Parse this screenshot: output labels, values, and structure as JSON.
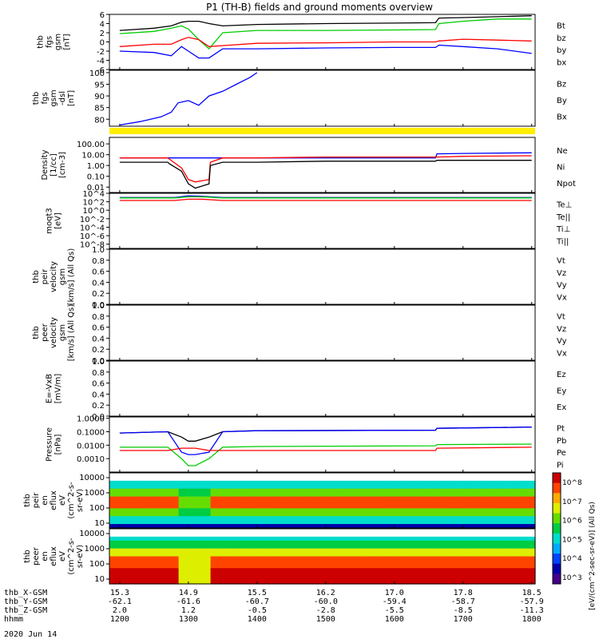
{
  "title": "P1 (TH-B) fields and ground moments overview",
  "date_label": "2020 Jun 14",
  "x_axis_rows": [
    {
      "label": "thb_X-GSM",
      "values": [
        "15.3",
        "14.9",
        "15.5",
        "16.2",
        "17.0",
        "17.8",
        "18.5"
      ]
    },
    {
      "label": "thb_Y-GSM",
      "values": [
        "-62.1",
        "-61.6",
        "-60.7",
        "-60.0",
        "-59.4",
        "-58.7",
        "-57.9"
      ]
    },
    {
      "label": "thb_Z-GSM",
      "values": [
        "2.0",
        "1.2",
        "-0.5",
        "-2.8",
        "-5.5",
        "-8.5",
        "-11.3"
      ]
    },
    {
      "label": "hhmm",
      "values": [
        "1200",
        "1300",
        "1400",
        "1500",
        "1600",
        "1700",
        "1800"
      ]
    }
  ],
  "colors": {
    "black": "#000000",
    "red": "#ff0000",
    "green": "#00cc00",
    "blue": "#0000ff",
    "yellow": "#ffee00"
  },
  "colorbar": {
    "title": "[eV/(cm^2-sec-sr-eV)] (All Qs)",
    "tick_labels": [
      "10^8",
      "10^7",
      "10^6",
      "10^5",
      "10^4",
      "10^3"
    ]
  },
  "chart_data": [
    {
      "id": "fgs",
      "type": "line",
      "ylabel_lines": [
        "thb",
        "fgs",
        "gsm",
        "[nT]"
      ],
      "ylim": [
        -6,
        6
      ],
      "yticks": [
        "-6",
        "-4",
        "-2",
        "0",
        "2",
        "4",
        "6"
      ],
      "x": [
        12.0,
        12.5,
        12.75,
        12.9,
        13.0,
        13.15,
        13.3,
        13.5,
        14.0,
        15.0,
        16.0,
        16.6,
        16.65,
        17.0,
        17.5,
        18.0
      ],
      "legend": [
        {
          "name": "Bt",
          "color": "#000000"
        },
        {
          "name": "bz",
          "color": "#ff0000"
        },
        {
          "name": "by",
          "color": "#00cc00"
        },
        {
          "name": "bx",
          "color": "#0000ff"
        }
      ],
      "series": [
        {
          "key": "Bt",
          "color": "#000000",
          "values": [
            2.5,
            3.0,
            3.5,
            4.3,
            4.5,
            4.5,
            4.0,
            3.5,
            3.8,
            4.0,
            4.1,
            4.2,
            5.2,
            5.3,
            5.5,
            5.7
          ]
        },
        {
          "key": "by",
          "color": "#00cc00",
          "values": [
            1.8,
            2.3,
            3.0,
            3.5,
            2.8,
            0.5,
            -1.5,
            2.0,
            2.5,
            2.5,
            2.6,
            2.7,
            4.0,
            4.5,
            5.0,
            5.0
          ]
        },
        {
          "key": "bz",
          "color": "#ff0000",
          "values": [
            -1.0,
            -0.5,
            -0.5,
            0.5,
            1.0,
            0.5,
            -1.0,
            -0.8,
            -0.3,
            -0.2,
            0.0,
            0.0,
            0.2,
            0.6,
            0.4,
            0.2
          ]
        },
        {
          "key": "bx",
          "color": "#0000ff",
          "values": [
            -2.0,
            -2.3,
            -3.0,
            -1.0,
            -2.0,
            -3.5,
            -3.5,
            -1.5,
            -1.5,
            -1.3,
            -1.2,
            -1.2,
            -0.7,
            -1.0,
            -1.5,
            -2.5
          ]
        }
      ]
    },
    {
      "id": "fgs_dsl",
      "type": "line",
      "ylabel_lines": [
        "thb",
        "fgs",
        "gsm",
        "-dsl",
        "[nT]"
      ],
      "ylim": [
        77,
        101
      ],
      "yticks": [
        "80",
        "85",
        "90",
        "95",
        "100"
      ],
      "x": [
        12.0,
        12.3,
        12.6,
        12.75,
        12.85,
        13.0,
        13.15,
        13.3,
        13.5,
        13.7,
        13.9,
        14.0
      ],
      "legend": [
        {
          "name": "Bz",
          "color": "#ff0000"
        },
        {
          "name": "By",
          "color": "#00cc00"
        },
        {
          "name": "Bx",
          "color": "#0000ff"
        }
      ],
      "series": [
        {
          "key": "Bx",
          "color": "#0000ff",
          "values": [
            77.5,
            79,
            81,
            83,
            87,
            88,
            86,
            90,
            92,
            95,
            98,
            100
          ]
        }
      ]
    },
    {
      "id": "density",
      "type": "line",
      "log": true,
      "ylabel_lines": [
        "Density",
        "[1/cc]",
        "[cm-3]"
      ],
      "ylim_log": [
        -2.5,
        2.6
      ],
      "yticks": [
        "0.01",
        "0.10",
        "1.00",
        "10.00",
        "100.00"
      ],
      "x": [
        12.0,
        12.7,
        12.72,
        12.9,
        13.0,
        13.1,
        13.3,
        13.32,
        13.5,
        14.0,
        15.0,
        16.6,
        16.62,
        17.0,
        18.0
      ],
      "legend": [
        {
          "name": "Ne",
          "color": "#ff0000"
        },
        {
          "name": "Ni",
          "color": "#000000"
        },
        {
          "name": "Npot",
          "color": "#0000ff"
        }
      ],
      "series": [
        {
          "key": "Npot",
          "color": "#0000ff",
          "values": [
            5,
            5,
            5,
            5,
            5,
            5,
            5,
            5,
            5,
            5,
            5,
            5,
            12,
            13,
            15
          ]
        },
        {
          "key": "Ne",
          "color": "#ff0000",
          "values": [
            5,
            5,
            4,
            0.6,
            0.05,
            0.03,
            0.05,
            2,
            5,
            5,
            6,
            6,
            6,
            7,
            8
          ]
        },
        {
          "key": "Ni",
          "color": "#000000",
          "values": [
            2,
            2,
            1.5,
            0.3,
            0.02,
            0.008,
            0.02,
            1,
            2,
            2,
            2.5,
            2.5,
            3,
            3,
            3
          ]
        }
      ]
    },
    {
      "id": "temp",
      "type": "line",
      "log": true,
      "ylabel_lines": [
        "moqt3",
        "[eV]"
      ],
      "ylim_log": [
        -9,
        4
      ],
      "yticks": [
        "10^-8",
        "10^-6",
        "10^-4",
        "10^-2",
        "10^0",
        "10^2",
        "10^4"
      ],
      "x": [
        12.0,
        12.8,
        13.0,
        13.2,
        13.5,
        18.0
      ],
      "legend": [
        {
          "name": "Te⊥",
          "color": "#ff0000"
        },
        {
          "name": "Te||",
          "color": "#000000"
        },
        {
          "name": "Ti⊥",
          "color": "#0000ff"
        },
        {
          "name": "Ti||",
          "color": "#00cc00"
        }
      ],
      "series": [
        {
          "key": "Ti",
          "color": "#0000ff",
          "values": [
            1000,
            1000,
            2500,
            2000,
            1000,
            1000
          ]
        },
        {
          "key": "Ti2",
          "color": "#00cc00",
          "values": [
            800,
            800,
            1500,
            1500,
            800,
            800
          ]
        },
        {
          "key": "Te",
          "color": "#ff0000",
          "values": [
            200,
            200,
            400,
            400,
            200,
            200
          ]
        }
      ]
    },
    {
      "id": "ivel",
      "type": "line",
      "ylabel_lines": [
        "thb",
        "peir",
        "velocity",
        "gsm",
        "[km/s] (All Qs)"
      ],
      "ylim": [
        0,
        1
      ],
      "yticks": [
        "0.0",
        "0.2",
        "0.4",
        "0.6",
        "0.8",
        "1.0"
      ],
      "legend": [
        {
          "name": "Vt",
          "color": "#000000"
        },
        {
          "name": "Vz",
          "color": "#ff0000"
        },
        {
          "name": "Vy",
          "color": "#00cc00"
        },
        {
          "name": "Vx",
          "color": "#0000ff"
        }
      ],
      "series": []
    },
    {
      "id": "evel",
      "type": "line",
      "ylabel_lines": [
        "thb",
        "peer",
        "velocity",
        "gsm",
        "[km/s] (All Qs)"
      ],
      "ylim": [
        0,
        1
      ],
      "yticks": [
        "0.0",
        "0.2",
        "0.4",
        "0.6",
        "0.8",
        "1.0"
      ],
      "legend": [
        {
          "name": "Vt",
          "color": "#000000"
        },
        {
          "name": "Vz",
          "color": "#ff0000"
        },
        {
          "name": "Vy",
          "color": "#00cc00"
        },
        {
          "name": "Vx",
          "color": "#0000ff"
        }
      ],
      "series": []
    },
    {
      "id": "efield",
      "type": "line",
      "ylabel_lines": [
        "E=-VxB",
        "[mV/m]"
      ],
      "ylim": [
        0,
        1
      ],
      "yticks": [
        "0.0",
        "0.2",
        "0.4",
        "0.6",
        "0.8",
        "1.0"
      ],
      "legend": [
        {
          "name": "Ez",
          "color": "#ff0000"
        },
        {
          "name": "Ey",
          "color": "#00cc00"
        },
        {
          "name": "Ex",
          "color": "#0000ff"
        }
      ],
      "series": []
    },
    {
      "id": "pressure",
      "type": "line",
      "log": true,
      "ylabel_lines": [
        "Pressure",
        "[nPa]"
      ],
      "ylim_log": [
        -4.0,
        0.1
      ],
      "yticks": [
        "0.0010",
        "0.0100",
        "0.1000",
        "1.0000"
      ],
      "x": [
        12.0,
        12.7,
        12.9,
        13.0,
        13.1,
        13.3,
        13.5,
        14.0,
        16.6,
        16.62,
        18.0
      ],
      "legend": [
        {
          "name": "Pt",
          "color": "#000000"
        },
        {
          "name": "Pb",
          "color": "#ff0000"
        },
        {
          "name": "Pe",
          "color": "#00cc00"
        },
        {
          "name": "Pi",
          "color": "#0000ff"
        }
      ],
      "series": [
        {
          "key": "Pt",
          "color": "#000000",
          "values": [
            0.08,
            0.1,
            0.04,
            0.02,
            0.02,
            0.04,
            0.1,
            0.12,
            0.13,
            0.18,
            0.22
          ]
        },
        {
          "key": "Pi",
          "color": "#0000ff",
          "values": [
            0.08,
            0.1,
            0.003,
            0.002,
            0.002,
            0.003,
            0.1,
            0.12,
            0.13,
            0.18,
            0.22
          ]
        },
        {
          "key": "Pe",
          "color": "#00cc00",
          "values": [
            0.007,
            0.007,
            0.001,
            0.0003,
            0.0003,
            0.001,
            0.007,
            0.008,
            0.009,
            0.011,
            0.012
          ]
        },
        {
          "key": "Pb",
          "color": "#ff0000",
          "values": [
            0.004,
            0.004,
            0.006,
            0.006,
            0.006,
            0.004,
            0.004,
            0.004,
            0.004,
            0.006,
            0.007
          ]
        }
      ]
    },
    {
      "id": "ispec",
      "type": "heatmap",
      "ylabel_lines": [
        "thb",
        "peir",
        "en",
        "eflux",
        "eV",
        "(cm^2-s-",
        "sr-eV)"
      ],
      "yticks": [
        "10",
        "100",
        "1000",
        "10000"
      ]
    },
    {
      "id": "espec",
      "type": "heatmap",
      "ylabel_lines": [
        "thb",
        "peer",
        "en",
        "eflux",
        "eV",
        "(cm^2-s-",
        "sr-eV)"
      ],
      "yticks": [
        "10",
        "100",
        "1000",
        "10000"
      ]
    }
  ]
}
